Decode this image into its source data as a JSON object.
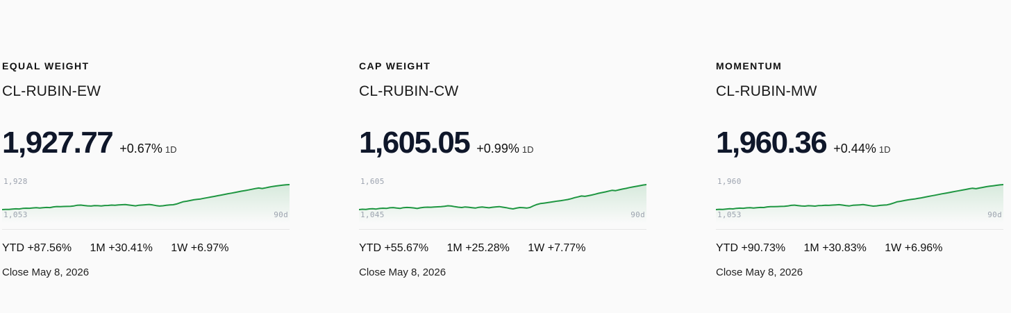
{
  "cards": [
    {
      "category": "EQUAL WEIGHT",
      "ticker": "CL-RUBIN-EW",
      "price": "1,927.77",
      "change": "+0.67%",
      "period": "1D",
      "spark": {
        "max_label": "1,928",
        "min_label": "1,053",
        "span_label": "90d",
        "min": 1053,
        "max": 1928,
        "values": [
          1053,
          1060,
          1058,
          1072,
          1080,
          1076,
          1095,
          1102,
          1098,
          1112,
          1118,
          1109,
          1120,
          1128,
          1124,
          1148,
          1160,
          1156,
          1162,
          1165,
          1170,
          1182,
          1205,
          1212,
          1196,
          1184,
          1176,
          1192,
          1188,
          1179,
          1196,
          1200,
          1210,
          1204,
          1216,
          1222,
          1230,
          1214,
          1198,
          1184,
          1206,
          1214,
          1222,
          1232,
          1216,
          1194,
          1176,
          1186,
          1204,
          1216,
          1222,
          1250,
          1290,
          1330,
          1348,
          1372,
          1396,
          1410,
          1425,
          1448,
          1470,
          1492,
          1515,
          1540,
          1562,
          1586,
          1610,
          1630,
          1652,
          1676,
          1700,
          1720,
          1742,
          1764,
          1790,
          1810,
          1792,
          1814,
          1840,
          1862,
          1880,
          1895,
          1908,
          1922,
          1928
        ]
      },
      "stats": [
        {
          "label": "YTD",
          "value": "+87.56%"
        },
        {
          "label": "1M",
          "value": "+30.41%"
        },
        {
          "label": "1W",
          "value": "+6.97%"
        }
      ],
      "close": "Close May 8, 2026"
    },
    {
      "category": "CAP WEIGHT",
      "ticker": "CL-RUBIN-CW",
      "price": "1,605.05",
      "change": "+0.99%",
      "period": "1D",
      "spark": {
        "max_label": "1,605",
        "min_label": "1,045",
        "span_label": "90d",
        "min": 1045,
        "max": 1605,
        "values": [
          1045,
          1052,
          1049,
          1060,
          1064,
          1058,
          1070,
          1076,
          1072,
          1085,
          1090,
          1080,
          1072,
          1088,
          1094,
          1090,
          1082,
          1070,
          1086,
          1096,
          1100,
          1098,
          1104,
          1108,
          1112,
          1120,
          1130,
          1124,
          1110,
          1100,
          1092,
          1104,
          1098,
          1088,
          1080,
          1096,
          1102,
          1094,
          1086,
          1098,
          1106,
          1112,
          1100,
          1088,
          1072,
          1060,
          1078,
          1092,
          1088,
          1080,
          1094,
          1130,
          1160,
          1180,
          1190,
          1200,
          1212,
          1224,
          1236,
          1246,
          1258,
          1270,
          1290,
          1312,
          1330,
          1350,
          1342,
          1356,
          1372,
          1390,
          1410,
          1426,
          1442,
          1460,
          1478,
          1470,
          1488,
          1506,
          1520,
          1538,
          1552,
          1566,
          1580,
          1596,
          1605
        ]
      },
      "stats": [
        {
          "label": "YTD",
          "value": "+55.67%"
        },
        {
          "label": "1M",
          "value": "+25.28%"
        },
        {
          "label": "1W",
          "value": "+7.77%"
        }
      ],
      "close": "Close May 8, 2026"
    },
    {
      "category": "MOMENTUM",
      "ticker": "CL-RUBIN-MW",
      "price": "1,960.36",
      "change": "+0.44%",
      "period": "1D",
      "spark": {
        "max_label": "1,960",
        "min_label": "1,053",
        "span_label": "90d",
        "min": 1053,
        "max": 1960,
        "values": [
          1053,
          1062,
          1058,
          1074,
          1082,
          1078,
          1098,
          1106,
          1100,
          1116,
          1122,
          1112,
          1124,
          1132,
          1128,
          1150,
          1162,
          1158,
          1164,
          1168,
          1172,
          1184,
          1206,
          1214,
          1198,
          1186,
          1178,
          1194,
          1190,
          1180,
          1198,
          1202,
          1212,
          1206,
          1218,
          1224,
          1232,
          1216,
          1200,
          1186,
          1208,
          1216,
          1224,
          1234,
          1218,
          1196,
          1180,
          1190,
          1206,
          1218,
          1224,
          1254,
          1296,
          1338,
          1356,
          1380,
          1404,
          1420,
          1436,
          1458,
          1480,
          1504,
          1528,
          1552,
          1574,
          1600,
          1624,
          1646,
          1668,
          1692,
          1716,
          1738,
          1760,
          1784,
          1808,
          1830,
          1812,
          1836,
          1860,
          1884,
          1902,
          1918,
          1934,
          1950,
          1960
        ]
      },
      "stats": [
        {
          "label": "YTD",
          "value": "+90.73%"
        },
        {
          "label": "1M",
          "value": "+30.83%"
        },
        {
          "label": "1W",
          "value": "+6.96%"
        }
      ],
      "close": "Close May 8, 2026"
    }
  ],
  "colors": {
    "line": "#1e9641",
    "fill": "#1e9641",
    "text": "#0f172a",
    "muted": "#9ca3af"
  }
}
